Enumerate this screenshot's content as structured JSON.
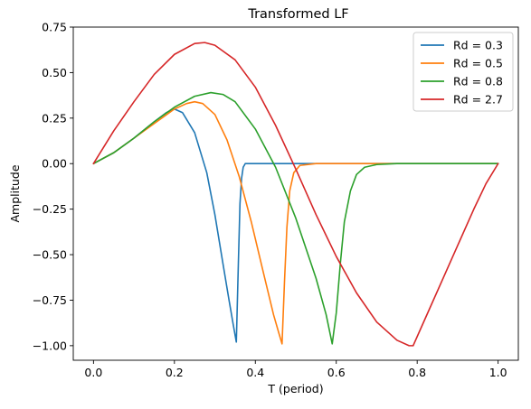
{
  "chart_data": {
    "type": "line",
    "title": "Transformed LF",
    "xlabel": "T (period)",
    "ylabel": "Amplitude",
    "xlim": [
      -0.05,
      1.05
    ],
    "ylim": [
      -1.08,
      0.75
    ],
    "xticks": [
      0.0,
      0.2,
      0.4,
      0.6,
      0.8,
      1.0
    ],
    "xtick_labels": [
      "0.0",
      "0.2",
      "0.4",
      "0.6",
      "0.8",
      "1.0"
    ],
    "yticks": [
      0.75,
      0.5,
      0.25,
      0.0,
      -0.25,
      -0.5,
      -0.75,
      -1.0
    ],
    "ytick_labels": [
      "0.75",
      "0.50",
      "0.25",
      "0.00",
      "−0.25",
      "−0.50",
      "−0.75",
      "−1.00"
    ],
    "grid": false,
    "legend_position": "top-right",
    "series": [
      {
        "name": "Rd = 0.3",
        "color": "#1f77b4",
        "x": [
          0.0,
          0.05,
          0.1,
          0.15,
          0.18,
          0.2,
          0.22,
          0.25,
          0.28,
          0.3,
          0.32,
          0.335,
          0.345,
          0.353,
          0.358,
          0.362,
          0.366,
          0.37,
          0.375,
          0.38,
          0.4,
          0.5,
          0.6,
          0.8,
          1.0
        ],
        "y": [
          0.0,
          0.06,
          0.14,
          0.23,
          0.28,
          0.3,
          0.28,
          0.17,
          -0.05,
          -0.28,
          -0.55,
          -0.75,
          -0.88,
          -0.98,
          -0.55,
          -0.22,
          -0.08,
          -0.02,
          0.0,
          0.0,
          0.0,
          0.0,
          0.0,
          0.0,
          0.0
        ]
      },
      {
        "name": "Rd = 0.5",
        "color": "#ff7f0e",
        "x": [
          0.0,
          0.05,
          0.1,
          0.15,
          0.2,
          0.23,
          0.25,
          0.27,
          0.3,
          0.33,
          0.36,
          0.39,
          0.42,
          0.445,
          0.458,
          0.466,
          0.472,
          0.478,
          0.485,
          0.495,
          0.51,
          0.55,
          0.6,
          0.8,
          1.0
        ],
        "y": [
          0.0,
          0.06,
          0.14,
          0.22,
          0.3,
          0.33,
          0.34,
          0.33,
          0.27,
          0.13,
          -0.07,
          -0.32,
          -0.6,
          -0.83,
          -0.93,
          -0.99,
          -0.65,
          -0.35,
          -0.15,
          -0.05,
          -0.01,
          0.0,
          0.0,
          0.0,
          0.0
        ]
      },
      {
        "name": "Rd = 0.8",
        "color": "#2ca02c",
        "x": [
          0.0,
          0.05,
          0.1,
          0.15,
          0.2,
          0.25,
          0.29,
          0.32,
          0.35,
          0.4,
          0.45,
          0.5,
          0.55,
          0.575,
          0.59,
          0.6,
          0.61,
          0.62,
          0.635,
          0.65,
          0.67,
          0.7,
          0.75,
          0.85,
          1.0
        ],
        "y": [
          0.0,
          0.06,
          0.14,
          0.23,
          0.31,
          0.37,
          0.39,
          0.38,
          0.34,
          0.19,
          -0.02,
          -0.3,
          -0.63,
          -0.83,
          -0.99,
          -0.82,
          -0.55,
          -0.32,
          -0.15,
          -0.06,
          -0.02,
          -0.005,
          0.0,
          0.0,
          0.0
        ]
      },
      {
        "name": "Rd = 2.7",
        "color": "#d62728",
        "x": [
          0.0,
          0.05,
          0.1,
          0.15,
          0.2,
          0.25,
          0.275,
          0.3,
          0.35,
          0.4,
          0.45,
          0.5,
          0.55,
          0.6,
          0.65,
          0.7,
          0.75,
          0.78,
          0.79,
          0.82,
          0.86,
          0.9,
          0.94,
          0.97,
          1.0
        ],
        "y": [
          0.0,
          0.18,
          0.34,
          0.49,
          0.6,
          0.66,
          0.665,
          0.65,
          0.57,
          0.42,
          0.21,
          -0.03,
          -0.28,
          -0.51,
          -0.71,
          -0.87,
          -0.97,
          -1.0,
          -1.0,
          -0.85,
          -0.65,
          -0.45,
          -0.25,
          -0.11,
          0.0
        ]
      }
    ]
  }
}
